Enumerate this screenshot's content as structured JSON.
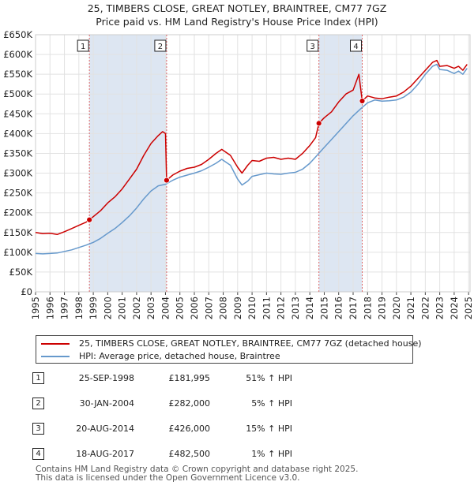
{
  "title_line1": "25, TIMBERS CLOSE, GREAT NOTLEY, BRAINTREE, CM77 7GZ",
  "title_line2": "Price paid vs. HM Land Registry's House Price Index (HPI)",
  "colors": {
    "price": "#cc0000",
    "hpi": "#6699cc",
    "vline": "#dd6666",
    "shade": "#dde6f2"
  },
  "chart_data": {
    "type": "line",
    "title": "25, TIMBERS CLOSE, GREAT NOTLEY, BRAINTREE, CM77 7GZ — Price paid vs. HM Land Registry's House Price Index (HPI)",
    "xlabel": "",
    "ylabel": "",
    "xlim": [
      1995.0,
      2025.1
    ],
    "ylim": [
      0,
      650000
    ],
    "x_ticks": [
      "1995",
      "1996",
      "1997",
      "1998",
      "1999",
      "2000",
      "2001",
      "2002",
      "2003",
      "2004",
      "2005",
      "2006",
      "2007",
      "2008",
      "2009",
      "2010",
      "2011",
      "2012",
      "2013",
      "2014",
      "2015",
      "2016",
      "2017",
      "2018",
      "2019",
      "2020",
      "2021",
      "2022",
      "2023",
      "2024",
      "2025"
    ],
    "y_ticks": [
      "£0",
      "£50K",
      "£100K",
      "£150K",
      "£200K",
      "£250K",
      "£300K",
      "£350K",
      "£400K",
      "£450K",
      "£500K",
      "£550K",
      "£600K",
      "£650K"
    ],
    "y_tick_values": [
      0,
      50000,
      100000,
      150000,
      200000,
      250000,
      300000,
      350000,
      400000,
      450000,
      500000,
      550000,
      600000,
      650000
    ],
    "shaded_ranges": [
      [
        1998.73,
        2004.08
      ],
      [
        2014.63,
        2017.63
      ]
    ],
    "series": [
      {
        "name": "25, TIMBERS CLOSE, GREAT NOTLEY, BRAINTREE, CM77 7GZ (detached house)",
        "x": [
          1995.0,
          1995.5,
          1996.0,
          1996.5,
          1997.0,
          1997.5,
          1998.0,
          1998.5,
          1998.73,
          1999.0,
          1999.5,
          2000.0,
          2000.5,
          2001.0,
          2001.5,
          2002.0,
          2002.5,
          2003.0,
          2003.5,
          2003.8,
          2004.0,
          2004.08,
          2004.5,
          2005.0,
          2005.5,
          2006.0,
          2006.5,
          2007.0,
          2007.5,
          2007.9,
          2008.5,
          2009.0,
          2009.3,
          2009.7,
          2010.0,
          2010.5,
          2011.0,
          2011.5,
          2012.0,
          2012.5,
          2013.0,
          2013.5,
          2014.0,
          2014.4,
          2014.63,
          2015.0,
          2015.5,
          2016.0,
          2016.5,
          2017.0,
          2017.4,
          2017.63,
          2018.0,
          2018.5,
          2019.0,
          2019.5,
          2020.0,
          2020.5,
          2021.0,
          2021.5,
          2022.0,
          2022.5,
          2022.8,
          2023.0,
          2023.5,
          2024.0,
          2024.3,
          2024.6,
          2024.9
        ],
        "values": [
          150000,
          147000,
          148000,
          145000,
          152000,
          160000,
          168000,
          176000,
          181995,
          190000,
          205000,
          225000,
          240000,
          260000,
          285000,
          310000,
          345000,
          375000,
          395000,
          405000,
          400000,
          282000,
          295000,
          305000,
          312000,
          315000,
          322000,
          335000,
          350000,
          360000,
          345000,
          315000,
          300000,
          320000,
          332000,
          330000,
          338000,
          340000,
          335000,
          338000,
          335000,
          350000,
          370000,
          390000,
          426000,
          440000,
          455000,
          480000,
          500000,
          510000,
          550000,
          482500,
          495000,
          490000,
          488000,
          492000,
          495000,
          505000,
          520000,
          540000,
          560000,
          580000,
          585000,
          570000,
          572000,
          565000,
          570000,
          560000,
          575000
        ]
      },
      {
        "name": "HPI: Average price, detached house, Braintree",
        "x": [
          1995.0,
          1995.5,
          1996.0,
          1996.5,
          1997.0,
          1997.5,
          1998.0,
          1998.5,
          1999.0,
          1999.5,
          2000.0,
          2000.5,
          2001.0,
          2001.5,
          2002.0,
          2002.5,
          2003.0,
          2003.5,
          2004.0,
          2004.5,
          2005.0,
          2005.5,
          2006.0,
          2006.5,
          2007.0,
          2007.5,
          2007.9,
          2008.5,
          2009.0,
          2009.3,
          2009.7,
          2010.0,
          2010.5,
          2011.0,
          2011.5,
          2012.0,
          2012.5,
          2013.0,
          2013.5,
          2014.0,
          2014.5,
          2015.0,
          2015.5,
          2016.0,
          2016.5,
          2017.0,
          2017.5,
          2018.0,
          2018.5,
          2019.0,
          2019.5,
          2020.0,
          2020.5,
          2021.0,
          2021.5,
          2022.0,
          2022.5,
          2022.8,
          2023.0,
          2023.5,
          2024.0,
          2024.3,
          2024.6,
          2024.9
        ],
        "values": [
          97000,
          96000,
          97000,
          98000,
          102000,
          106000,
          112000,
          118000,
          125000,
          135000,
          148000,
          160000,
          175000,
          192000,
          212000,
          235000,
          255000,
          268000,
          272000,
          282000,
          290000,
          295000,
          300000,
          306000,
          315000,
          325000,
          335000,
          320000,
          285000,
          270000,
          280000,
          292000,
          296000,
          300000,
          298000,
          297000,
          300000,
          302000,
          310000,
          325000,
          345000,
          365000,
          385000,
          405000,
          425000,
          445000,
          462000,
          478000,
          485000,
          482000,
          483000,
          485000,
          492000,
          505000,
          525000,
          550000,
          570000,
          575000,
          562000,
          560000,
          552000,
          558000,
          550000,
          565000
        ]
      }
    ],
    "sales": [
      {
        "label": "1",
        "x": 1998.73,
        "price": 181995
      },
      {
        "label": "2",
        "x": 2004.08,
        "price": 282000
      },
      {
        "label": "3",
        "x": 2014.63,
        "price": 426000
      },
      {
        "label": "4",
        "x": 2017.63,
        "price": 482500
      }
    ]
  },
  "legend": {
    "price_label": "25, TIMBERS CLOSE, GREAT NOTLEY, BRAINTREE, CM77 7GZ (detached house)",
    "hpi_label": "HPI: Average price, detached house, Braintree"
  },
  "sales_table": [
    {
      "num": "1",
      "date": "25-SEP-1998",
      "price": "£181,995",
      "hpi": "51% ↑ HPI"
    },
    {
      "num": "2",
      "date": "30-JAN-2004",
      "price": "£282,000",
      "hpi": "5% ↑ HPI"
    },
    {
      "num": "3",
      "date": "20-AUG-2014",
      "price": "£426,000",
      "hpi": "15% ↑ HPI"
    },
    {
      "num": "4",
      "date": "18-AUG-2017",
      "price": "£482,500",
      "hpi": "1% ↑ HPI"
    }
  ],
  "footer": {
    "line1": "Contains HM Land Registry data © Crown copyright and database right 2025.",
    "line2": "This data is licensed under the Open Government Licence v3.0."
  }
}
